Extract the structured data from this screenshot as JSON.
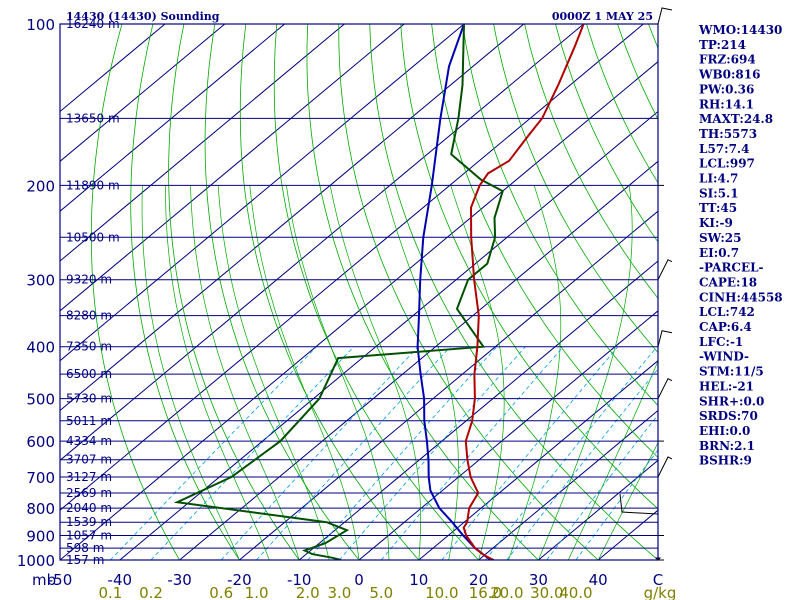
{
  "header": {
    "station": "14430 (14430) Sounding",
    "datetime": "0000Z  1 MAY 25"
  },
  "indices": [
    "WMO:14430",
    "TP:214",
    "FRZ:694",
    "WB0:816",
    "PW:0.36",
    "RH:14.1",
    "MAXT:24.8",
    "TH:5573",
    "L57:7.4",
    "LCL:997",
    "LI:4.7",
    "SI:5.1",
    "TT:45",
    "KI:-9",
    "SW:25",
    "EI:0.7",
    "-PARCEL-",
    "CAPE:18",
    "CINH:44558",
    "LCL:742",
    "CAP:6.4",
    "LFC:-1",
    "-WIND-",
    "STM:11/5",
    "HEL:-21",
    "SHR+:0.0",
    "SRDS:70",
    "EHI:0.0",
    "BRN:2.1",
    "BSHR:9"
  ],
  "colors": {
    "isobar": "#000080",
    "isotherm": "#000080",
    "dry_adiabat": "#00aa00",
    "moist_adiabat": "#00aa00",
    "mixing_ratio": "#00a0e0",
    "temperature": "#b00000",
    "dewpoint": "#005000",
    "parcel": "#0000b0",
    "wind": "#000000"
  },
  "chart_data": {
    "type": "line",
    "diagram": "skew-T log-p",
    "xlim": [
      -50,
      50
    ],
    "pressure_levels": [
      {
        "p": 100,
        "height": "16240 m"
      },
      {
        "p": 150,
        "height": "13650 m"
      },
      {
        "p": 200,
        "height": "11890 m"
      },
      {
        "p": 250,
        "height": "10500 m"
      },
      {
        "p": 300,
        "height": "9320 m"
      },
      {
        "p": 350,
        "height": "8280 m"
      },
      {
        "p": 400,
        "height": "7350 m"
      },
      {
        "p": 450,
        "height": "6500 m"
      },
      {
        "p": 500,
        "height": "5730 m"
      },
      {
        "p": 550,
        "height": "5011 m"
      },
      {
        "p": 600,
        "height": "4334 m"
      },
      {
        "p": 650,
        "height": "3707 m"
      },
      {
        "p": 700,
        "height": "3127 m"
      },
      {
        "p": 750,
        "height": "2569 m"
      },
      {
        "p": 800,
        "height": "2040 m"
      },
      {
        "p": 850,
        "height": "1539 m"
      },
      {
        "p": 900,
        "height": "1057 m"
      },
      {
        "p": 950,
        "height": "598 m"
      },
      {
        "p": 1000,
        "height": "157 m"
      }
    ],
    "pressure_labels": [
      "100",
      "200",
      "300",
      "400",
      "500",
      "600",
      "700",
      "800",
      "900",
      "1000"
    ],
    "temp_ticks": [
      {
        "t": -50,
        "label": "-50"
      },
      {
        "t": -40,
        "label": "-40"
      },
      {
        "t": -30,
        "label": "-30"
      },
      {
        "t": -20,
        "label": "-20"
      },
      {
        "t": -10,
        "label": "-10"
      },
      {
        "t": 0,
        "label": "0"
      },
      {
        "t": 10,
        "label": "10"
      },
      {
        "t": 20,
        "label": "20"
      },
      {
        "t": 30,
        "label": "30"
      },
      {
        "t": 40,
        "label": "40"
      },
      {
        "t": 50,
        "label": "C"
      }
    ],
    "pressure_unit": "mb",
    "mixing_ratio_unit": "g/kg",
    "mixing_ratio_labels": [
      {
        "w": 0.1,
        "label": "0.1"
      },
      {
        "w": 0.2,
        "label": "0.2"
      },
      {
        "w": 0.6,
        "label": "0.6"
      },
      {
        "w": 1.0,
        "label": "1.0"
      },
      {
        "w": 2.0,
        "label": "2.0"
      },
      {
        "w": 3.0,
        "label": "3.0"
      },
      {
        "w": 5.0,
        "label": "5.0"
      },
      {
        "w": 10.0,
        "label": "10.0"
      },
      {
        "w": 16.0,
        "label": "16.0"
      },
      {
        "w": 20.0,
        "label": "20.0"
      },
      {
        "w": 30.0,
        "label": "30.0"
      },
      {
        "w": 40.0,
        "label": "40.0"
      }
    ],
    "temperature": [
      {
        "p": 1000,
        "t": 22.5
      },
      {
        "p": 980,
        "t": 20.0
      },
      {
        "p": 950,
        "t": 17.0
      },
      {
        "p": 900,
        "t": 13.0
      },
      {
        "p": 870,
        "t": 11.0
      },
      {
        "p": 850,
        "t": 10.5
      },
      {
        "p": 800,
        "t": 8.0
      },
      {
        "p": 750,
        "t": 6.5
      },
      {
        "p": 700,
        "t": 2.0
      },
      {
        "p": 650,
        "t": -2.0
      },
      {
        "p": 600,
        "t": -6.0
      },
      {
        "p": 550,
        "t": -9.0
      },
      {
        "p": 500,
        "t": -13.0
      },
      {
        "p": 450,
        "t": -18.0
      },
      {
        "p": 400,
        "t": -23.0
      },
      {
        "p": 350,
        "t": -29.0
      },
      {
        "p": 300,
        "t": -37.0
      },
      {
        "p": 250,
        "t": -46.0
      },
      {
        "p": 220,
        "t": -52.0
      },
      {
        "p": 200,
        "t": -55.0
      },
      {
        "p": 190,
        "t": -56.0
      },
      {
        "p": 180,
        "t": -55.0
      },
      {
        "p": 160,
        "t": -57.0
      },
      {
        "p": 150,
        "t": -58.0
      },
      {
        "p": 130,
        "t": -62.0
      },
      {
        "p": 110,
        "t": -67.0
      },
      {
        "p": 100,
        "t": -70.0
      }
    ],
    "dewpoint": [
      {
        "p": 1000,
        "t": -3.0
      },
      {
        "p": 990,
        "t": -5.0
      },
      {
        "p": 975,
        "t": -9.0
      },
      {
        "p": 960,
        "t": -11.0
      },
      {
        "p": 930,
        "t": -9.0
      },
      {
        "p": 880,
        "t": -8.0
      },
      {
        "p": 850,
        "t": -13.0
      },
      {
        "p": 780,
        "t": -42.0
      },
      {
        "p": 700,
        "t": -38.0
      },
      {
        "p": 600,
        "t": -37.0
      },
      {
        "p": 500,
        "t": -39.0
      },
      {
        "p": 420,
        "t": -44.0
      },
      {
        "p": 400,
        "t": -22.0
      },
      {
        "p": 340,
        "t": -34.0
      },
      {
        "p": 300,
        "t": -38.0
      },
      {
        "p": 280,
        "t": -38.0
      },
      {
        "p": 250,
        "t": -42.0
      },
      {
        "p": 230,
        "t": -46.0
      },
      {
        "p": 205,
        "t": -50.0
      },
      {
        "p": 195,
        "t": -56.0
      },
      {
        "p": 175,
        "t": -66.0
      },
      {
        "p": 150,
        "t": -72.0
      },
      {
        "p": 130,
        "t": -78.0
      },
      {
        "p": 100,
        "t": -90.0
      }
    ],
    "parcel": [
      {
        "p": 1000,
        "t": 22.0
      },
      {
        "p": 950,
        "t": 17.0
      },
      {
        "p": 900,
        "t": 12.5
      },
      {
        "p": 850,
        "t": 8.0
      },
      {
        "p": 800,
        "t": 3.0
      },
      {
        "p": 742,
        "t": -2.0
      },
      {
        "p": 700,
        "t": -5.0
      },
      {
        "p": 650,
        "t": -8.5
      },
      {
        "p": 600,
        "t": -12.5
      },
      {
        "p": 550,
        "t": -17.0
      },
      {
        "p": 500,
        "t": -21.5
      },
      {
        "p": 450,
        "t": -27.0
      },
      {
        "p": 400,
        "t": -33.0
      },
      {
        "p": 350,
        "t": -39.0
      },
      {
        "p": 300,
        "t": -46.0
      },
      {
        "p": 250,
        "t": -54.0
      },
      {
        "p": 200,
        "t": -63.0
      },
      {
        "p": 150,
        "t": -75.0
      },
      {
        "p": 120,
        "t": -84.0
      },
      {
        "p": 100,
        "t": -90.0
      }
    ]
  }
}
